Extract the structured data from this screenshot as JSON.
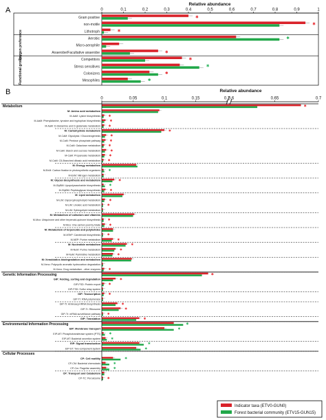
{
  "colors": {
    "indicator": "#d9222a",
    "forest": "#22a84a",
    "err": "#888888",
    "star_red": "#e8282e",
    "star_green": "#27b35a"
  },
  "legend": [
    {
      "label": "Indicator taxa (ETV0-GUN0)",
      "color": "#d9222a"
    },
    {
      "label": "Forest bacterial community (ETV15-GUN15)",
      "color": "#22a84a"
    }
  ],
  "chart_data": [
    {
      "type": "bar",
      "panel_label": "A",
      "xlabel": "Relative abundance",
      "xlim": [
        0,
        1
      ],
      "xticks": [
        "0",
        "0.1",
        "0.2",
        "0.3",
        "0.4",
        "0.5",
        "0.6",
        "0.7",
        "0.8",
        "0.9",
        "1"
      ],
      "groups": [
        {
          "name": "",
          "range": [
            0,
            2
          ]
        },
        {
          "name": "Oxygen preference",
          "range": [
            3,
            5
          ]
        },
        {
          "name": "Functional groups",
          "range": [
            6,
            9
          ]
        }
      ],
      "categories": [
        "Gram positive",
        "non-motile",
        "Lithotroph",
        "Aerobic",
        "Micro-aerophile",
        "Anaerobe/Facultative anaerobe",
        "Competitors",
        "Stress sensitives",
        "Colonizers",
        "Mesophiles"
      ],
      "series": [
        {
          "name": "Indicator taxa (ETV0-GUN0)",
          "values": [
            0.4,
            0.94,
            0.04,
            0.62,
            0.08,
            0.26,
            0.37,
            0.36,
            0.22,
            0.12
          ]
        },
        {
          "name": "Forest bacterial community (ETV15-GUN15)",
          "values": [
            0.12,
            0.82,
            0.01,
            0.82,
            0.02,
            0.13,
            0.2,
            0.45,
            0.26,
            0.18
          ]
        }
      ],
      "significance": [
        {
          "row": 0,
          "color": "red"
        },
        {
          "row": 1,
          "color": "red"
        },
        {
          "row": 2,
          "color": "red"
        },
        {
          "row": 3,
          "color": "green"
        },
        {
          "row": 5,
          "color": "red"
        },
        {
          "row": 6,
          "color": "red"
        },
        {
          "row": 7,
          "color": "green"
        },
        {
          "row": 8,
          "color": "red"
        },
        {
          "row": 9,
          "color": "green"
        }
      ]
    },
    {
      "type": "bar",
      "panel_label": "B",
      "xlabel": "Relative abundance",
      "xlim": [
        0,
        0.7
      ],
      "axis_break": [
        0.2,
        0.6
      ],
      "xticks": [
        "0",
        "0.05",
        "0.1",
        "0.15",
        "0.2",
        "0.6",
        "0.65",
        "0.7"
      ],
      "sections": [
        {
          "name": "Metabolism",
          "values": [
            0.68,
            0.63
          ],
          "star": "red"
        },
        {
          "name": "Genetic Information Processing",
          "values": [
            0.17,
            0.16
          ],
          "star": "red"
        },
        {
          "name": "Environmental Information Processing",
          "values": [
            0.115,
            0.13
          ],
          "star": "green"
        },
        {
          "name": "Cellular Processes",
          "values": [
            0,
            0
          ]
        }
      ],
      "rows": [
        {
          "label": "M: Amino acid metabolism",
          "bold": true,
          "sep": false,
          "values": [
            0.092,
            0.09
          ],
          "star": ""
        },
        {
          "label": "M-AaM: Lysine biosynthesis",
          "bold": false,
          "sep": false,
          "values": [
            0.004,
            0.003
          ],
          "star": "red"
        },
        {
          "label": "M-AaM: Phenylalanine, tyrosine and tryptophan biosynthesis",
          "bold": false,
          "sep": false,
          "values": [
            0.006,
            0.004
          ],
          "star": "red"
        },
        {
          "label": "M-AaM: D-Glutamine and D-glutamate metabolism",
          "bold": false,
          "sep": true,
          "values": [
            0.004,
            0.003
          ],
          "star": "red"
        },
        {
          "label": "M: Carbohydrate metabolism",
          "bold": true,
          "sep": false,
          "values": [
            0.1,
            0.095
          ],
          "star": "red"
        },
        {
          "label": "M-CaM: Glycolysis / Gluconeogenesis",
          "bold": false,
          "sep": false,
          "values": [
            0.007,
            0.005
          ],
          "star": "red"
        },
        {
          "label": "M-CaM: Pentose phosphate pathway",
          "bold": false,
          "sep": false,
          "values": [
            0.006,
            0.004
          ],
          "star": "red"
        },
        {
          "label": "M-CaM: Galactose metabolism",
          "bold": false,
          "sep": false,
          "values": [
            0.004,
            0.003
          ],
          "star": "red"
        },
        {
          "label": "M-CaM: Starch and sucrose metabolism",
          "bold": false,
          "sep": false,
          "values": [
            0.007,
            0.005
          ],
          "star": "red"
        },
        {
          "label": "M-CaM: Propanoate metabolism",
          "bold": false,
          "sep": false,
          "values": [
            0.005,
            0.004
          ],
          "star": "red"
        },
        {
          "label": "M-CaM: C5-Branched dibasic acid metabolism",
          "bold": false,
          "sep": true,
          "values": [
            0.003,
            0.002
          ],
          "star": "red"
        },
        {
          "label": "M: Energy metabolism",
          "bold": true,
          "sep": false,
          "values": [
            0.055,
            0.057
          ],
          "star": ""
        },
        {
          "label": "M-EnM: Carbon fixation in photosynthetic organisms",
          "bold": false,
          "sep": false,
          "values": [
            0.003,
            0.004
          ],
          "star": "green"
        },
        {
          "label": "M-EnM: Nitrogen metabolism",
          "bold": false,
          "sep": true,
          "values": [
            0.003,
            0.003
          ],
          "star": ""
        },
        {
          "label": "M: Glycan biosynthesis and metabolism",
          "bold": true,
          "sep": false,
          "values": [
            0.02,
            0.017
          ],
          "star": "red"
        },
        {
          "label": "M-GlyBM: Lipopolysaccharide biosynthesis",
          "bold": false,
          "sep": false,
          "values": [
            0.003,
            0.005
          ],
          "star": "green"
        },
        {
          "label": "M-GlyBM: Peptidoglycan biosynthesis",
          "bold": false,
          "sep": true,
          "values": [
            0.006,
            0.004
          ],
          "star": "red"
        },
        {
          "label": "M: Lipid metabolism",
          "bold": true,
          "sep": false,
          "values": [
            0.035,
            0.033
          ],
          "star": ""
        },
        {
          "label": "M-LiM: Glycerophospholipid metabolism",
          "bold": false,
          "sep": false,
          "values": [
            0.005,
            0.004
          ],
          "star": "red"
        },
        {
          "label": "M-LiM: Linoleic acid metabolism",
          "bold": false,
          "sep": false,
          "values": [
            0.002,
            0.002
          ],
          "star": "red"
        },
        {
          "label": "M-LiM: Sphingolipid metabolism",
          "bold": false,
          "sep": true,
          "values": [
            0.002,
            0.002
          ],
          "star": ""
        },
        {
          "label": "M: Metabolism of cofactors and vitamins",
          "bold": true,
          "sep": false,
          "values": [
            0.052,
            0.05
          ],
          "star": ""
        },
        {
          "label": "M-Mco: Ubiquinone and other terpenoid-quinone biosynthesis",
          "bold": false,
          "sep": false,
          "values": [
            0.003,
            0.003
          ],
          "star": "red"
        },
        {
          "label": "M-Mco: One carbon pool by folate",
          "bold": false,
          "sep": true,
          "values": [
            0.005,
            0.004
          ],
          "star": "red"
        },
        {
          "label": "M: Metabolism of terpenoids and polyketides",
          "bold": true,
          "sep": false,
          "values": [
            0.018,
            0.018
          ],
          "star": ""
        },
        {
          "label": "M-MTeP: Carotenoid biosynthesis",
          "bold": false,
          "sep": false,
          "values": [
            0.002,
            0.002
          ],
          "star": "red"
        },
        {
          "label": "M-NEP: Purine metabolism",
          "bold": false,
          "sep": true,
          "values": [
            0.018,
            0.016
          ],
          "star": "red"
        },
        {
          "label": "M: Nucleotide metabolism",
          "bold": true,
          "sep": false,
          "values": [
            0.04,
            0.038
          ],
          "star": "red"
        },
        {
          "label": "M-NuM: Purine metabolism",
          "bold": false,
          "sep": false,
          "values": [
            0.022,
            0.02
          ],
          "star": "red"
        },
        {
          "label": "M-NuM: Pyrimidine metabolism",
          "bold": false,
          "sep": true,
          "values": [
            0.018,
            0.017
          ],
          "star": "red"
        },
        {
          "label": "M: Xenobiotics biodegradation and metabolism",
          "bold": true,
          "sep": false,
          "values": [
            0.048,
            0.047
          ],
          "star": ""
        },
        {
          "label": "M-Xeno: Polycyclic aromatic hydrocarbon degradation",
          "bold": false,
          "sep": false,
          "values": [
            0.002,
            0.002
          ],
          "star": ""
        },
        {
          "label": "M-Xeno: Drug metabolism - other enzymes",
          "bold": false,
          "sep": true,
          "values": [
            0.004,
            0.003
          ],
          "star": "red"
        },
        {
          "label": "GIP: Folding, sorting and degradation",
          "bold": true,
          "sep": false,
          "values": [
            0.022,
            0.018
          ],
          "star": "red"
        },
        {
          "label": "GIP-FSD: Protein export",
          "bold": false,
          "sep": false,
          "values": [
            0.004,
            0.003
          ],
          "star": "red"
        },
        {
          "label": "GIP-FSD: Sulfur relay system",
          "bold": false,
          "sep": true,
          "values": [
            0.002,
            0.002
          ],
          "star": ""
        },
        {
          "label": "GIP: Transcription",
          "bold": true,
          "sep": false,
          "values": [
            0.004,
            0.003
          ],
          "star": "red"
        },
        {
          "label": "GIP-Tr: RNA polymerase",
          "bold": false,
          "sep": true,
          "values": [
            0.002,
            0.002
          ],
          "star": ""
        },
        {
          "label": "GIP-Tr: Aminoacyl-tRNA biosynthesis",
          "bold": false,
          "sep": false,
          "values": [
            0.025,
            0.022
          ],
          "star": "red"
        },
        {
          "label": "GIP-Tr: Ribosome",
          "bold": false,
          "sep": false,
          "values": [
            0.03,
            0.027
          ],
          "star": "red"
        },
        {
          "label": "GIP-Tr: mRNA surveillance pathway",
          "bold": false,
          "sep": true,
          "values": [
            0.002,
            0.002
          ],
          "star": "red"
        },
        {
          "label": "GIP: Translation",
          "bold": true,
          "sep": true,
          "values": [
            0.06,
            0.055
          ],
          "star": "red"
        },
        {
          "label": "EIP: Membrane transport",
          "bold": true,
          "sep": false,
          "values": [
            0.1,
            0.115
          ],
          "star": "green"
        },
        {
          "label": "EIP-MT: Phosphotransferase system (PTS)",
          "bold": false,
          "sep": false,
          "values": [
            0.003,
            0.005
          ],
          "star": "green"
        },
        {
          "label": "EIP-MT: Bacterial secretion system",
          "bold": false,
          "sep": true,
          "values": [
            0.006,
            0.008
          ],
          "star": "green"
        },
        {
          "label": "EIP: Signal transduction",
          "bold": true,
          "sep": false,
          "values": [
            0.06,
            0.067
          ],
          "star": "green"
        },
        {
          "label": "EIP-ST: Two-component system",
          "bold": false,
          "sep": true,
          "values": [
            0.055,
            0.062
          ],
          "star": "green"
        },
        {
          "label": "CP: Cell motility",
          "bold": true,
          "sep": false,
          "values": [
            0.018,
            0.03
          ],
          "star": "green"
        },
        {
          "label": "CP-CM: Bacterial chemotaxis",
          "bold": false,
          "sep": false,
          "values": [
            0.006,
            0.012
          ],
          "star": "green"
        },
        {
          "label": "CP-Cm: Flagellar assembly",
          "bold": false,
          "sep": true,
          "values": [
            0.007,
            0.012
          ],
          "star": "green"
        },
        {
          "label": "CP: Transport and Catabolism",
          "bold": true,
          "sep": false,
          "values": [
            0.004,
            0.004
          ],
          "star": ""
        },
        {
          "label": "CP-TC: Peroxisome",
          "bold": false,
          "sep": false,
          "values": [
            0.002,
            0.002
          ],
          "star": "red"
        }
      ]
    }
  ]
}
